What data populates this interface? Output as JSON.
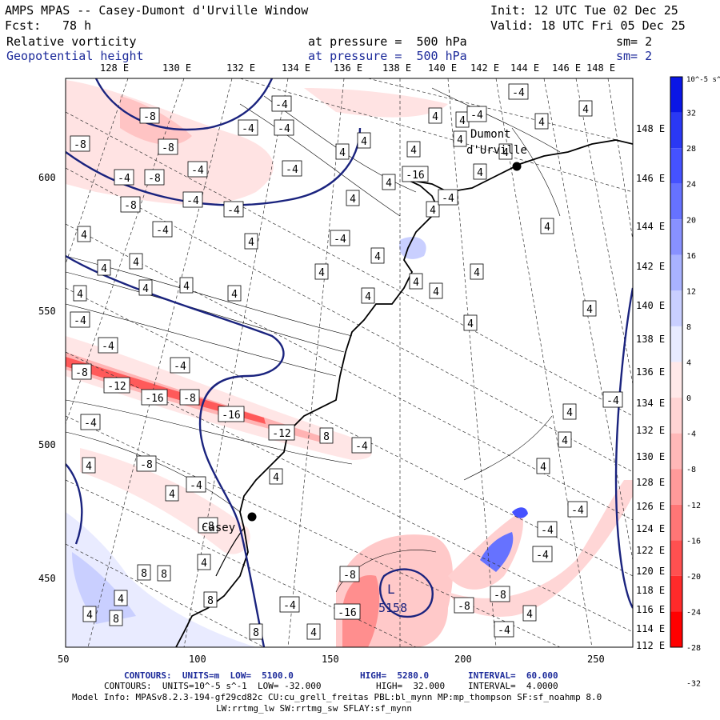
{
  "header": {
    "title": "AMPS MPAS -- Casey-Dumont d'Urville Window",
    "init": "Init: 12 UTC Tue 02 Dec 25",
    "fcst_label": "Fcst:",
    "fcst_value": "78 h",
    "valid": "Valid: 18 UTC Fri 05 Dec 25",
    "field1_name": "Relative vorticity",
    "field1_level": "at pressure =  500 hPa",
    "field1_sm": "sm= 2",
    "field2_name": "Geopotential height",
    "field2_level": "at pressure =  500 hPa",
    "field2_sm": "sm= 2"
  },
  "colors": {
    "height_contour": "#1a237e",
    "coast": "#000000",
    "neg_scale": [
      "#ff0000",
      "#ff2a2a",
      "#ff5050",
      "#ff7676",
      "#ff9a9a",
      "#ffb8b8",
      "#ffd4d4",
      "#ffe9e9"
    ],
    "pos_scale": [
      "#e8ebff",
      "#c9cfff",
      "#a9b2ff",
      "#8891ff",
      "#6672ff",
      "#4552ff",
      "#2a38f4",
      "#0a16e6"
    ]
  },
  "lon_labels": [
    "128 E",
    "130 E",
    "132 E",
    "134 E",
    "136 E",
    "138 E",
    "140 E",
    "142 E",
    "144 E",
    "146 E",
    "148 E"
  ],
  "right_lon_labels": [
    "148 E",
    "146 E",
    "144 E",
    "142 E",
    "140 E",
    "138 E",
    "136 E",
    "134 E",
    "132 E",
    "130 E",
    "128 E",
    "126 E",
    "124 E",
    "122 E",
    "120 E",
    "118 E",
    "116 E",
    "114 E",
    "112 E"
  ],
  "lat_axis": {
    "ticks": [
      "600",
      "550",
      "500",
      "450"
    ]
  },
  "x_axis": {
    "ticks": [
      "50",
      "100",
      "150",
      "200",
      "250"
    ]
  },
  "colorbar": {
    "unit": "10^-5 s^-1",
    "labels": [
      "32",
      "28",
      "24",
      "20",
      "16",
      "12",
      "8",
      "4",
      "0",
      "-4",
      "-8",
      "-12",
      "-16",
      "-20",
      "-24",
      "-28",
      "-32"
    ]
  },
  "map_labels": {
    "places": [
      "Dumont",
      "d'Urville",
      "Casey"
    ],
    "low": "L",
    "low_value": "5158",
    "contour_values": [
      "-8",
      "-4",
      "4",
      "-12",
      "-16",
      "8"
    ]
  },
  "footer": {
    "line1_a": "CONTOURS:  UNITS=m  LOW=  5100.0",
    "line1_b": "HIGH=  5280.0",
    "line1_c": "INTERVAL=  60.000",
    "line2_a": "CONTOURS:  UNITS=10^-5 s^-1  LOW= -32.000",
    "line2_b": "HIGH=  32.000",
    "line2_c": "INTERVAL=  4.0000",
    "line3": "Model Info: MPASv8.2.3-194-gf29cd82c CU:cu_grell_freitas PBL:bl_mynn MP:mp_thompson SF:sf_noahmp 8.0",
    "line4": "LW:rrtmg_lw SW:rrtmg_sw SFLAY:sf_mynn"
  }
}
